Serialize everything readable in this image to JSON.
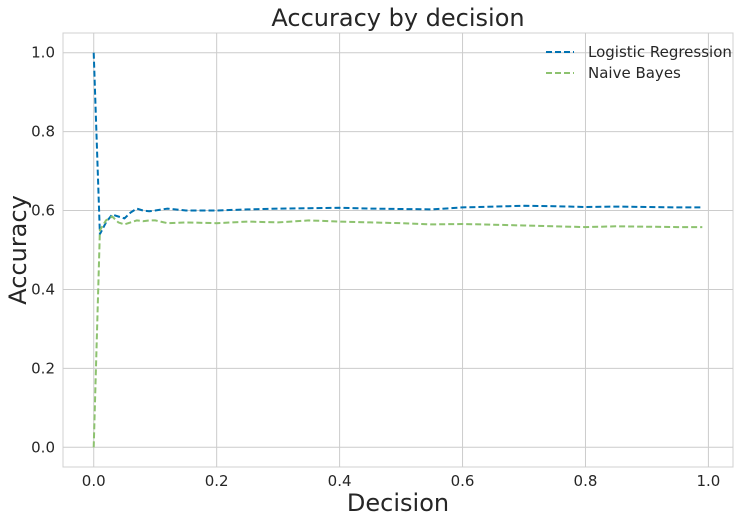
{
  "chart_data": {
    "type": "line",
    "title": "Accuracy by decision",
    "xlabel": "Decision",
    "ylabel": "Accuracy",
    "xlim": [
      -0.05,
      1.04
    ],
    "ylim": [
      -0.05,
      1.05
    ],
    "xticks": [
      "0.0",
      "0.2",
      "0.4",
      "0.6",
      "0.8",
      "1.0"
    ],
    "yticks": [
      "0.0",
      "0.2",
      "0.4",
      "0.6",
      "0.8",
      "1.0"
    ],
    "grid": true,
    "legend_position": "top-right",
    "series": [
      {
        "name": "Logistic Regression",
        "color": "#0072B2",
        "dash": "dashed",
        "x": [
          0.0,
          0.01,
          0.02,
          0.03,
          0.04,
          0.05,
          0.06,
          0.07,
          0.08,
          0.09,
          0.1,
          0.12,
          0.15,
          0.2,
          0.25,
          0.3,
          0.35,
          0.4,
          0.45,
          0.5,
          0.55,
          0.6,
          0.65,
          0.7,
          0.75,
          0.8,
          0.85,
          0.9,
          0.95,
          0.99
        ],
        "y": [
          1.0,
          0.54,
          0.57,
          0.59,
          0.585,
          0.58,
          0.595,
          0.605,
          0.6,
          0.598,
          0.6,
          0.605,
          0.6,
          0.6,
          0.603,
          0.605,
          0.606,
          0.607,
          0.605,
          0.604,
          0.603,
          0.608,
          0.61,
          0.612,
          0.611,
          0.609,
          0.61,
          0.609,
          0.608,
          0.608
        ]
      },
      {
        "name": "Naive Bayes",
        "color": "#8DC26F",
        "dash": "dashed",
        "x": [
          0.0,
          0.01,
          0.02,
          0.03,
          0.04,
          0.05,
          0.06,
          0.07,
          0.08,
          0.09,
          0.1,
          0.12,
          0.15,
          0.2,
          0.25,
          0.3,
          0.35,
          0.4,
          0.45,
          0.5,
          0.55,
          0.6,
          0.65,
          0.7,
          0.75,
          0.8,
          0.85,
          0.9,
          0.95,
          0.99
        ],
        "y": [
          0.0,
          0.55,
          0.575,
          0.585,
          0.57,
          0.565,
          0.57,
          0.575,
          0.573,
          0.575,
          0.575,
          0.568,
          0.57,
          0.568,
          0.572,
          0.57,
          0.575,
          0.572,
          0.57,
          0.568,
          0.565,
          0.566,
          0.564,
          0.562,
          0.56,
          0.558,
          0.56,
          0.559,
          0.558,
          0.558
        ]
      }
    ]
  }
}
